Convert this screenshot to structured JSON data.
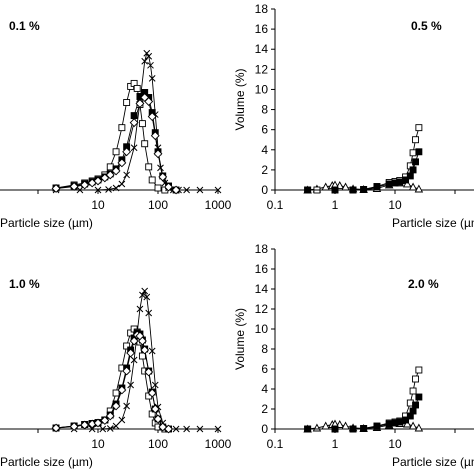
{
  "chart_data": [
    {
      "type": "line",
      "title": "0.1 %",
      "xlabel": "Particle size (µm)",
      "ylabel": "",
      "xscale": "log",
      "xlim": [
        0.1,
        1000
      ],
      "ylim": [
        0,
        18
      ],
      "xticks": [
        10,
        100,
        1000
      ],
      "xtick_labels": [
        "10",
        "100",
        "1000"
      ],
      "yticks": [],
      "grid": false,
      "series": [
        {
          "marker": "open-square",
          "x": [
            2,
            4,
            6,
            8,
            10,
            13,
            16,
            20,
            25,
            30,
            35,
            40,
            45,
            50,
            55,
            60,
            70,
            80,
            100,
            130
          ],
          "y": [
            0.2,
            0.5,
            0.7,
            0.9,
            1.1,
            1.5,
            2.3,
            3.8,
            6.2,
            8.7,
            10.3,
            10.6,
            10.1,
            8.5,
            6.6,
            4.6,
            2.3,
            1.0,
            0.2,
            0.0
          ]
        },
        {
          "marker": "cross",
          "x": [
            2,
            5,
            10,
            15,
            20,
            25,
            30,
            40,
            50,
            60,
            65,
            70,
            75,
            80,
            90,
            100,
            110,
            130,
            150,
            180,
            220,
            300,
            500,
            1000
          ],
          "y": [
            0.0,
            0.0,
            0.0,
            0.05,
            0.2,
            0.6,
            1.5,
            4.2,
            8.7,
            12.8,
            13.6,
            13.3,
            12.4,
            11.1,
            7.5,
            4.2,
            2.2,
            0.7,
            0.2,
            0.0,
            0.0,
            0.0,
            0.0,
            0.0
          ]
        },
        {
          "marker": "filled-square",
          "x": [
            2,
            4,
            6,
            8,
            10,
            13,
            16,
            20,
            25,
            30,
            40,
            50,
            60,
            70,
            80,
            90,
            100,
            120,
            150,
            200
          ],
          "y": [
            0.2,
            0.4,
            0.6,
            0.8,
            1.0,
            1.3,
            1.6,
            2.1,
            3.0,
            4.3,
            7.4,
            9.3,
            9.7,
            9.2,
            7.7,
            5.7,
            3.8,
            1.4,
            0.4,
            0.0
          ]
        },
        {
          "marker": "open-diamond",
          "x": [
            2,
            4,
            6,
            8,
            10,
            13,
            16,
            20,
            25,
            30,
            40,
            50,
            60,
            70,
            80,
            90,
            100,
            120,
            150,
            200
          ],
          "y": [
            0.15,
            0.35,
            0.5,
            0.7,
            0.9,
            1.2,
            1.5,
            1.9,
            2.7,
            3.8,
            6.7,
            8.6,
            9.2,
            8.8,
            7.3,
            5.4,
            3.6,
            1.3,
            0.3,
            0.0
          ]
        }
      ]
    },
    {
      "type": "line",
      "title": "0.5 %",
      "xlabel": "Particle size (µm)",
      "ylabel": "Volume (%)",
      "xscale": "log",
      "xlim": [
        0.1,
        1000
      ],
      "ylim": [
        0,
        18
      ],
      "xticks": [
        0.1,
        1,
        10
      ],
      "xtick_labels": [
        "0.1",
        "1",
        "10"
      ],
      "yticks": [
        0,
        2,
        4,
        6,
        8,
        10,
        12,
        14,
        16,
        18
      ],
      "grid": false,
      "series": [
        {
          "marker": "open-triangle",
          "x": [
            0.35,
            0.5,
            0.7,
            0.9,
            1.0,
            1.2,
            1.5,
            2,
            3,
            5,
            8,
            12,
            16,
            20,
            25
          ],
          "y": [
            0.0,
            0.1,
            0.3,
            0.45,
            0.5,
            0.45,
            0.3,
            0.12,
            0.05,
            0.15,
            0.5,
            0.7,
            0.6,
            0.3,
            0.1
          ]
        },
        {
          "marker": "open-square",
          "x": [
            0.35,
            0.5,
            1,
            2,
            3,
            5,
            8,
            10,
            12,
            15,
            18,
            20,
            22,
            25
          ],
          "y": [
            0.0,
            0.0,
            0.0,
            0.0,
            0.05,
            0.35,
            0.75,
            0.85,
            0.95,
            1.3,
            2.4,
            3.7,
            5.0,
            6.2
          ]
        },
        {
          "marker": "filled-square",
          "x": [
            0.35,
            1,
            2,
            3,
            5,
            8,
            10,
            12,
            15,
            18,
            20,
            22,
            25
          ],
          "y": [
            0.0,
            0.0,
            0.0,
            0.05,
            0.3,
            0.6,
            0.7,
            0.8,
            1.0,
            1.4,
            2.0,
            2.8,
            3.8
          ]
        }
      ]
    },
    {
      "type": "line",
      "title": "1.0 %",
      "xlabel": "Particle size (µm)",
      "ylabel": "",
      "xscale": "log",
      "xlim": [
        0.1,
        1000
      ],
      "ylim": [
        0,
        18
      ],
      "xticks": [
        10,
        100,
        1000
      ],
      "xtick_labels": [
        "10",
        "100",
        "1000"
      ],
      "yticks": [],
      "grid": false,
      "series": [
        {
          "marker": "cross",
          "x": [
            4,
            8,
            12,
            16,
            20,
            25,
            30,
            35,
            40,
            45,
            50,
            55,
            60,
            65,
            70,
            80,
            90,
            100,
            120,
            150,
            200,
            300,
            500,
            1000
          ],
          "y": [
            0.0,
            0.0,
            0.0,
            0.05,
            0.3,
            0.9,
            2.3,
            4.4,
            6.9,
            9.6,
            12.0,
            13.4,
            13.8,
            13.2,
            11.6,
            7.8,
            4.4,
            2.2,
            0.6,
            0.0,
            0.0,
            0.0,
            0.0,
            0.0
          ]
        },
        {
          "marker": "open-square",
          "x": [
            2,
            4,
            6,
            8,
            10,
            13,
            16,
            20,
            25,
            30,
            35,
            40,
            45,
            50,
            55,
            60,
            70,
            80,
            90,
            100,
            130
          ],
          "y": [
            0.1,
            0.3,
            0.45,
            0.55,
            0.6,
            0.9,
            1.8,
            3.6,
            6.1,
            8.3,
            9.6,
            10.0,
            9.7,
            8.7,
            7.3,
            5.8,
            3.3,
            1.5,
            0.6,
            0.2,
            0.0
          ]
        },
        {
          "marker": "filled-square",
          "x": [
            2,
            4,
            6,
            8,
            10,
            13,
            16,
            20,
            25,
            30,
            35,
            40,
            45,
            50,
            55,
            60,
            70,
            80,
            90,
            100,
            120,
            150
          ],
          "y": [
            0.1,
            0.3,
            0.45,
            0.55,
            0.65,
            0.9,
            1.4,
            2.5,
            4.1,
            6.1,
            7.9,
            9.1,
            9.6,
            9.5,
            8.9,
            8.0,
            5.8,
            3.7,
            2.0,
            1.0,
            0.2,
            0.0
          ]
        },
        {
          "marker": "open-diamond",
          "x": [
            2,
            4,
            6,
            8,
            10,
            13,
            16,
            20,
            25,
            30,
            35,
            40,
            45,
            50,
            55,
            60,
            70,
            80,
            90,
            100,
            120,
            150
          ],
          "y": [
            0.1,
            0.25,
            0.4,
            0.5,
            0.6,
            0.85,
            1.3,
            2.3,
            3.9,
            5.8,
            7.6,
            8.8,
            9.4,
            9.3,
            8.8,
            7.9,
            5.7,
            3.6,
            2.0,
            1.0,
            0.2,
            0.0
          ]
        }
      ]
    },
    {
      "type": "line",
      "title": "2.0 %",
      "xlabel": "Particle size (µm)",
      "ylabel": "Volume (%)",
      "xscale": "log",
      "xlim": [
        0.1,
        1000
      ],
      "ylim": [
        0,
        18
      ],
      "xticks": [
        0.1,
        1,
        10
      ],
      "xtick_labels": [
        "0.1",
        "1",
        "10"
      ],
      "yticks": [
        0,
        2,
        4,
        6,
        8,
        10,
        12,
        14,
        16,
        18
      ],
      "grid": false,
      "series": [
        {
          "marker": "open-triangle",
          "x": [
            0.35,
            0.5,
            0.7,
            0.9,
            1.0,
            1.2,
            1.5,
            2,
            3,
            5,
            8,
            12,
            16,
            20,
            25
          ],
          "y": [
            0.0,
            0.1,
            0.3,
            0.45,
            0.5,
            0.45,
            0.3,
            0.12,
            0.05,
            0.15,
            0.4,
            0.55,
            0.5,
            0.3,
            0.1
          ]
        },
        {
          "marker": "open-square",
          "x": [
            0.35,
            1,
            2,
            3,
            5,
            8,
            10,
            12,
            15,
            18,
            20,
            22,
            25
          ],
          "y": [
            0.0,
            0.0,
            0.0,
            0.05,
            0.3,
            0.6,
            0.7,
            0.8,
            1.3,
            2.6,
            3.8,
            5.0,
            5.9
          ]
        },
        {
          "marker": "filled-square",
          "x": [
            0.35,
            1,
            2,
            3,
            5,
            8,
            10,
            12,
            15,
            18,
            20,
            22,
            25
          ],
          "y": [
            0.0,
            0.0,
            0.0,
            0.05,
            0.25,
            0.5,
            0.6,
            0.7,
            0.9,
            1.3,
            1.8,
            2.4,
            3.2
          ]
        }
      ]
    }
  ]
}
